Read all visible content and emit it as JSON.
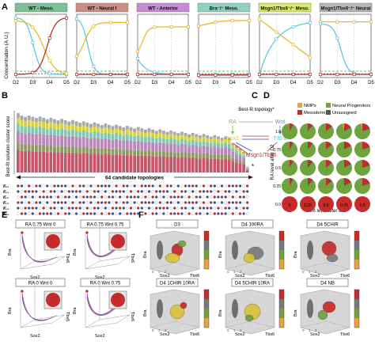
{
  "panel_letters": [
    "A",
    "B",
    "C",
    "D",
    "E",
    "F"
  ],
  "panelA": {
    "ylabel": "Concentration (A.U.)",
    "xticks": [
      "D2",
      "D3",
      "D4",
      "D5"
    ],
    "titles": [
      {
        "label": "WT - Meso.",
        "color": "#7fbf9a"
      },
      {
        "label": "WT - Neural I",
        "color": "#c98f86"
      },
      {
        "label": "WT - Anterior",
        "color": "#c68bd0"
      },
      {
        "label": "Bra⁻/⁻ Meso.",
        "color": "#8fd0c0"
      },
      {
        "label": "Msgn1/Tbx6⁻/⁻ Meso.",
        "color": "#d9e86a"
      },
      {
        "label": "Msgn1/Tbx6⁻/⁻ Neural",
        "color": "#b7b7b7"
      }
    ],
    "colors": {
      "sox2": "#e8b92b",
      "bra": "#5fc8e2",
      "msgn": "#b8322c",
      "ra": "#79c04a",
      "wnt": "#2f6ea5"
    }
  },
  "panelB": {
    "ylabel": "Best-fit solution cluster score",
    "arrow_label": "64 candidate topologies",
    "row_labels": [
      "K₁₂",
      "K₁₃",
      "K₂₁",
      "K₂₃",
      "K₃₁",
      "K₃₂"
    ],
    "star": "*",
    "segment_colors": [
      "#c7566a",
      "#8d9b62",
      "#b889b9",
      "#82c7b5",
      "#d8d23f",
      "#a8a8a8"
    ]
  },
  "panelC": {
    "title": "Best-fit topology*",
    "nodes": {
      "ra": "RA",
      "wnt": "Wnt",
      "sox2": "Sox2",
      "tbra": "T/Bra",
      "msgn": "Msgn1/Tbx6"
    },
    "colors": {
      "ra": "#79c04a",
      "wnt": "#5b8fc4",
      "sox2": "#e8b92b",
      "tbra": "#5fc8e2",
      "msgn": "#c0282b"
    }
  },
  "panelD": {
    "legend": [
      {
        "label": "NMPs",
        "color": "#e8a33d"
      },
      {
        "label": "Neural Progenitors",
        "color": "#6ea33e"
      },
      {
        "label": "Mesoderm",
        "color": "#c62a2a"
      },
      {
        "label": "Unassigned",
        "color": "#555555"
      }
    ],
    "ylabel": "RA level after D2",
    "xlabel": "Wnt level after D2",
    "yticks": [
      "1.0",
      "0.75",
      "0.5",
      "0.25",
      "0.0"
    ],
    "xticks": [
      "0",
      "0.25",
      "0.5",
      "0.75",
      "1.0"
    ]
  },
  "panelE": {
    "labels": [
      "RA 0.75 Wnt 0",
      "RA 0.75 Wnt 0.75",
      "RA 0 Wnt 0",
      "RA 0 Wnt 0.75"
    ],
    "axes": {
      "x": "Sox2",
      "y": "Tbx6",
      "z": "Bra"
    }
  },
  "panelF": {
    "labels": [
      "D3",
      "D4 100RA",
      "D4 5CHIR",
      "D4 1CHIR 10RA",
      "D4 5CHIR 10RA",
      "D4 NB"
    ],
    "axes": {
      "x": "Sox2",
      "y": "Tbx6",
      "z": "Bra"
    },
    "ticks": [
      "0",
      "1",
      "2"
    ],
    "colorbar_colors": [
      "#c62a2a",
      "#7a7a7a",
      "#6ea33e",
      "#e8a33d"
    ]
  }
}
